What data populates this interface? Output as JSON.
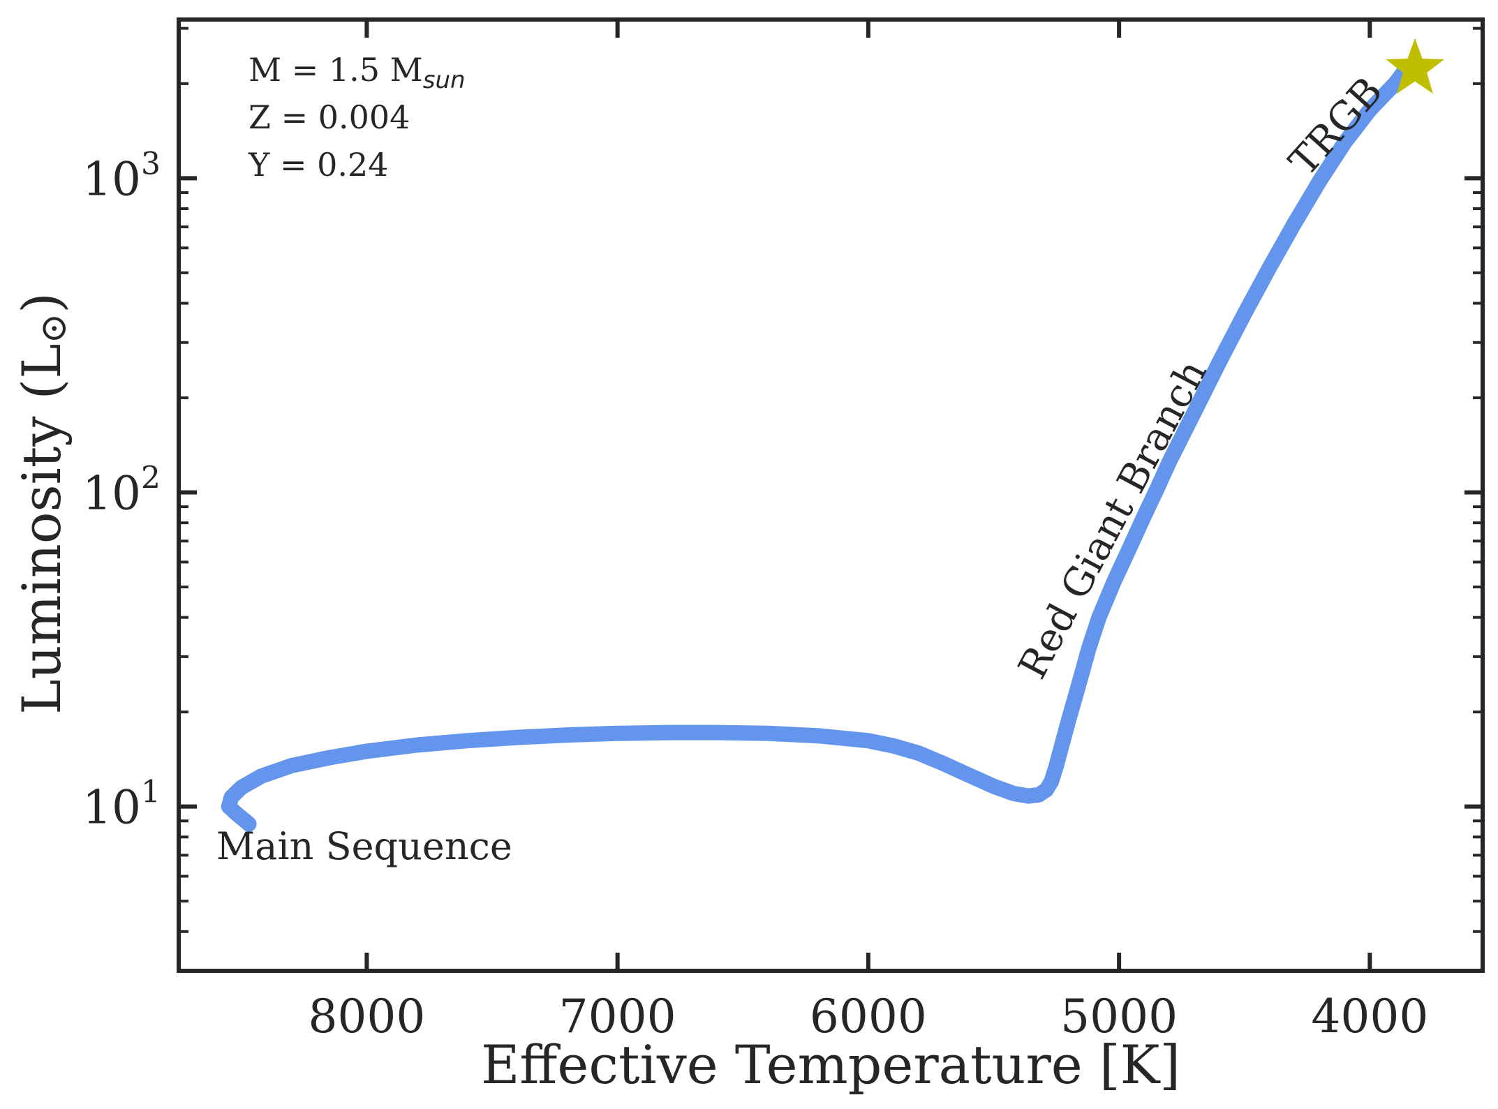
{
  "chart_data": {
    "type": "line",
    "title": "",
    "xlabel": "Effective Temperature [K]",
    "ylabel": "Luminosity (L",
    "ylabel_symbol": "⊙",
    "ylabel_close": ")",
    "x_inverted": true,
    "y_scale": "log",
    "xlim": [
      8750,
      3550
    ],
    "ylim": [
      3.0,
      3200
    ],
    "x_ticks": [
      8000,
      7000,
      6000,
      5000,
      4000
    ],
    "x_tick_labels": [
      "8000",
      "7000",
      "6000",
      "5000",
      "4000"
    ],
    "y_ticks": [
      10,
      100,
      1000
    ],
    "y_tick_labels": [
      {
        "base": "10",
        "exp": "1"
      },
      {
        "base": "10",
        "exp": "2"
      },
      {
        "base": "10",
        "exp": "3"
      }
    ],
    "grid": false,
    "series": [
      {
        "color": "#6495ed",
        "x": [
          8470,
          8520,
          8550,
          8540,
          8500,
          8420,
          8300,
          8150,
          8000,
          7800,
          7600,
          7400,
          7200,
          7000,
          6800,
          6600,
          6400,
          6200,
          6000,
          5900,
          5800,
          5700,
          5600,
          5500,
          5420,
          5360,
          5320,
          5290,
          5270,
          5250,
          5230,
          5200,
          5170,
          5140,
          5120,
          5080,
          5020,
          4960,
          4900,
          4850,
          4800,
          4700,
          4600,
          4500,
          4400,
          4300,
          4200,
          4100,
          4000,
          3900,
          3860
        ],
        "y": [
          8.8,
          9.5,
          10.0,
          10.7,
          11.5,
          12.5,
          13.5,
          14.3,
          15.0,
          15.7,
          16.2,
          16.6,
          16.9,
          17.1,
          17.2,
          17.2,
          17.1,
          16.8,
          16.2,
          15.6,
          14.8,
          13.7,
          12.6,
          11.6,
          11.0,
          10.8,
          10.9,
          11.3,
          12.0,
          13.5,
          15.5,
          19.0,
          23.0,
          28.0,
          32.0,
          40.0,
          52.0,
          66.0,
          84.0,
          102.0,
          125.0,
          180.0,
          260.0,
          370.0,
          520.0,
          720.0,
          980.0,
          1300.0,
          1650.0,
          2000.0,
          2200.0
        ]
      }
    ],
    "annotations": [
      {
        "text": "Main Sequence",
        "x": 8600,
        "y": 6.8,
        "rotation": 0
      },
      {
        "text": "Red Giant Branch",
        "x": 5310,
        "y": 25,
        "rotation": -62
      },
      {
        "text": "TRGB",
        "x": 4250,
        "y": 1000,
        "rotation": -48
      }
    ],
    "marker": {
      "shape": "star",
      "x": 3820,
      "y": 2230,
      "color": "#bfbf00"
    },
    "params_text": [
      {
        "main": "M = 1.5 M",
        "sub": "sun"
      },
      {
        "main": "Z = 0.004",
        "sub": ""
      },
      {
        "main": "Y = 0.24",
        "sub": ""
      }
    ]
  }
}
